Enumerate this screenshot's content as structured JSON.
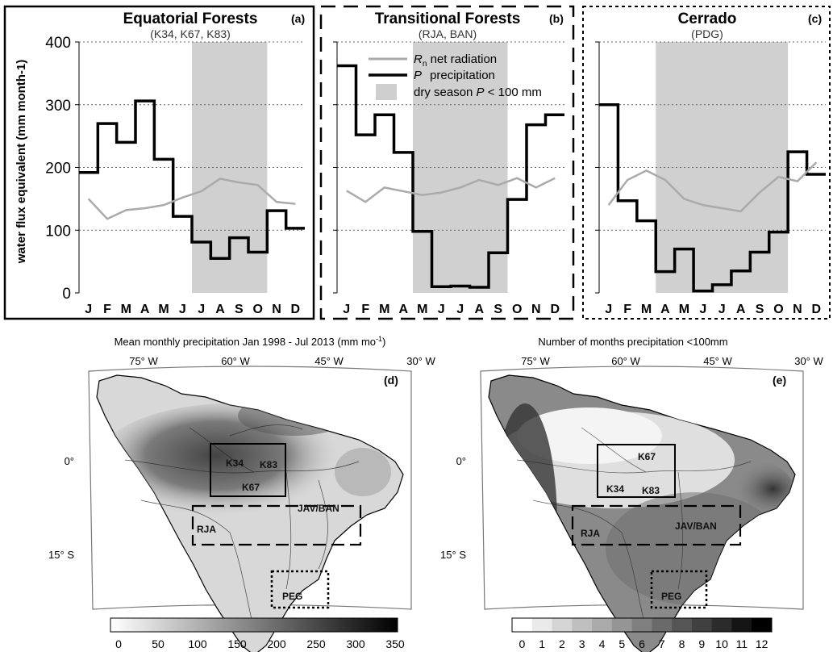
{
  "chart_data": [
    {
      "type": "line",
      "panel": "(a)",
      "title": "Equatorial Forests",
      "subtitle": "(K34, K67, K83)",
      "ylabel": "water flux equivalent (mm month-1)",
      "ylim": [
        0,
        400
      ],
      "yticks": [
        "0",
        "100",
        "200",
        "300",
        "400"
      ],
      "categories": [
        "J",
        "F",
        "M",
        "A",
        "M",
        "J",
        "J",
        "A",
        "S",
        "O",
        "N",
        "D"
      ],
      "dry_season_months": [
        "J",
        "A",
        "S",
        "O"
      ],
      "series": [
        {
          "name": "precipitation",
          "style": "step",
          "color": "#000000",
          "values": [
            192,
            270,
            240,
            306,
            213,
            122,
            81,
            55,
            88,
            65,
            131,
            103
          ]
        },
        {
          "name": "net radiation",
          "style": "line",
          "color": "#aaaaaa",
          "values": [
            150,
            118,
            132,
            135,
            140,
            152,
            162,
            182,
            176,
            172,
            145,
            142
          ]
        }
      ]
    },
    {
      "type": "line",
      "panel": "(b)",
      "title": "Transitional Forests",
      "subtitle": "(RJA, BAN)",
      "ylim": [
        0,
        400
      ],
      "categories": [
        "J",
        "F",
        "M",
        "A",
        "M",
        "J",
        "J",
        "A",
        "S",
        "O",
        "N",
        "D"
      ],
      "dry_season_months": [
        "M",
        "J",
        "J",
        "A",
        "S"
      ],
      "series": [
        {
          "name": "precipitation",
          "style": "step",
          "color": "#000000",
          "values": [
            362,
            252,
            284,
            224,
            98,
            10,
            11,
            9,
            64,
            149,
            268,
            284
          ]
        },
        {
          "name": "net radiation",
          "style": "line",
          "color": "#aaaaaa",
          "values": [
            163,
            145,
            168,
            162,
            156,
            160,
            168,
            180,
            172,
            183,
            168,
            183
          ]
        }
      ]
    },
    {
      "type": "line",
      "panel": "(c)",
      "title": "Cerrado",
      "subtitle": "(PDG)",
      "ylim": [
        0,
        400
      ],
      "categories": [
        "J",
        "F",
        "M",
        "A",
        "M",
        "J",
        "J",
        "A",
        "S",
        "O",
        "N",
        "D"
      ],
      "dry_season_months": [
        "A",
        "M",
        "J",
        "J",
        "A",
        "S",
        "O"
      ],
      "series": [
        {
          "name": "precipitation",
          "style": "step",
          "color": "#000000",
          "values": [
            300,
            147,
            115,
            34,
            70,
            3,
            13,
            35,
            65,
            97,
            225,
            189
          ]
        },
        {
          "name": "net radiation",
          "style": "line",
          "color": "#aaaaaa",
          "values": [
            140,
            180,
            195,
            180,
            150,
            140,
            135,
            130,
            160,
            185,
            178,
            208
          ]
        }
      ]
    }
  ],
  "legend": {
    "rn_symbol": "R",
    "rn_sub": "n",
    "rn_text": " net radiation",
    "p_symbol": "P",
    "p_text": "precipitation",
    "dry_prefix": "dry season ",
    "dry_symbol": "P",
    "dry_suffix": " < 100 mm"
  },
  "maps": {
    "left": {
      "panel": "(d)",
      "title_pre": "Mean monthly precipitation Jan 1998 - Jul 2013 (mm mo",
      "title_sup": "-1",
      "title_post": ")",
      "lon_labels": [
        "75° W",
        "60° W",
        "45° W",
        "30° W"
      ],
      "lat_labels": [
        "0°",
        "15° S"
      ],
      "sites": [
        "K34",
        "K83",
        "K67",
        "RJA",
        "JAV/BAN",
        "PEG"
      ],
      "colorbar_ticks": [
        "0",
        "50",
        "100",
        "150",
        "200",
        "250",
        "300",
        "350"
      ]
    },
    "right": {
      "panel": "(e)",
      "title": "Number of months precipitation <100mm",
      "lon_labels": [
        "75° W",
        "60° W",
        "45° W",
        "30° W"
      ],
      "lat_labels": [
        "0°",
        "15° S"
      ],
      "sites": [
        "K67",
        "K34",
        "K83",
        "RJA",
        "JAV/BAN",
        "PEG"
      ],
      "colorbar_ticks": [
        "0",
        "1",
        "2",
        "3",
        "4",
        "5",
        "6",
        "7",
        "8",
        "9",
        "10",
        "11",
        "12"
      ]
    }
  }
}
